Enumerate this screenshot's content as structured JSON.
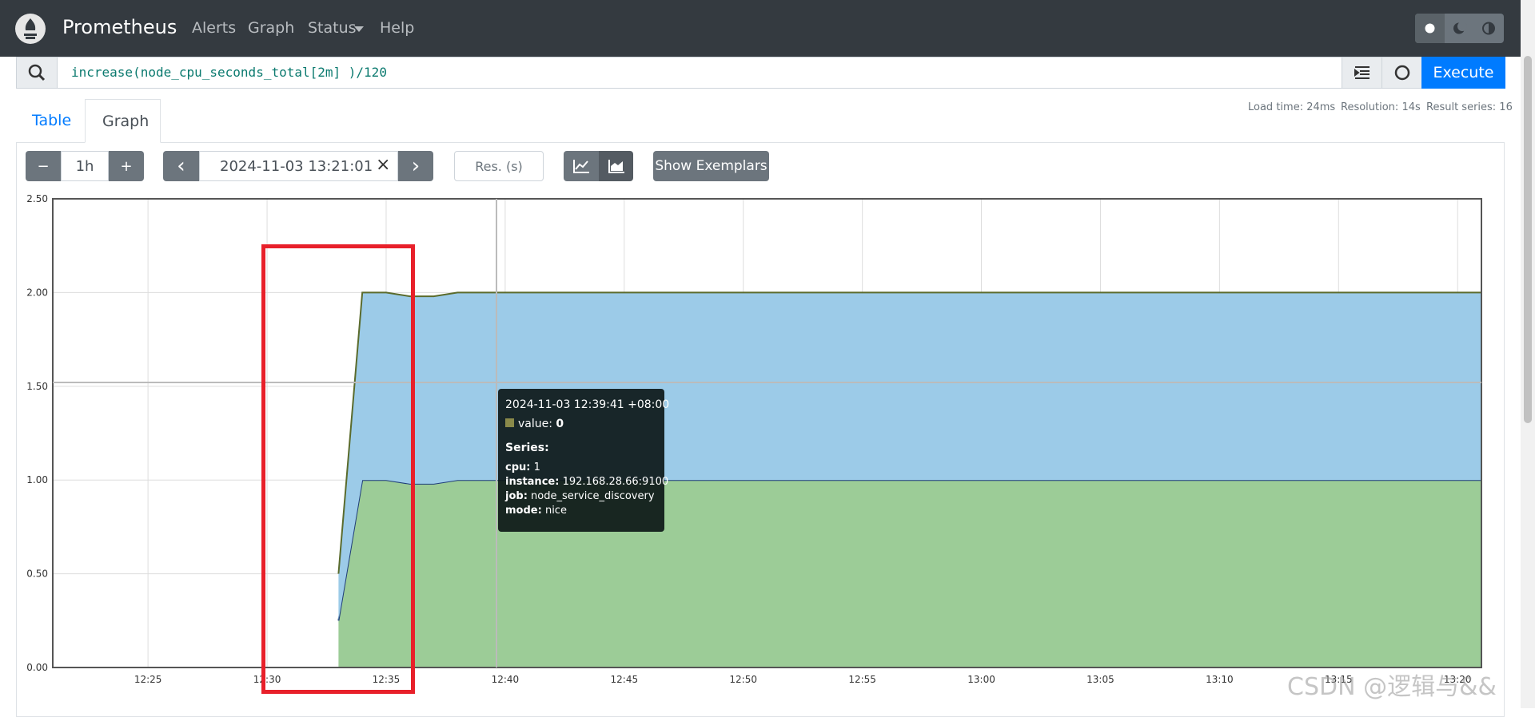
{
  "navbar": {
    "brand": "Prometheus",
    "links": [
      "Alerts",
      "Graph",
      "Status",
      "Help"
    ]
  },
  "query": {
    "expression": "increase(node_cpu_seconds_total[2m] )/120",
    "execute": "Execute"
  },
  "tabs": [
    "Table",
    "Graph"
  ],
  "stats": [
    "Load time: 24ms",
    "Resolution: 14s",
    "Result series: 16"
  ],
  "controls": {
    "minus": "−",
    "range": "1h",
    "plus": "+",
    "prev": "‹",
    "end_time": "2024-11-03 13:21:01",
    "clear": "×",
    "next": "›",
    "resolution": "Res. (s)",
    "exemplars": "Show Exemplars"
  },
  "chart_data": {
    "type": "area",
    "stacked": true,
    "x": [
      "12:33",
      "12:34",
      "12:35",
      "12:36",
      "12:37",
      "12:38",
      "12:40",
      "12:50",
      "13:00",
      "13:10",
      "13:21"
    ],
    "series": [
      {
        "color": "#9ccc97",
        "line_color": "#1f3c78",
        "values": [
          0.25,
          1,
          1,
          0.98,
          0.98,
          1,
          1,
          1,
          1,
          1,
          1
        ]
      },
      {
        "color": "#9ccbe8",
        "line_color": "#5a6b2c",
        "values": [
          0.25,
          1,
          1,
          1,
          1,
          1,
          1,
          1,
          1,
          1,
          1
        ]
      }
    ],
    "xlim": [
      "12:21",
      "13:21"
    ],
    "xticks": [
      "12:25",
      "12:30",
      "12:35",
      "12:40",
      "12:45",
      "12:50",
      "12:55",
      "13:00",
      "13:05",
      "13:10",
      "13:15",
      "13:20"
    ],
    "ylim": [
      0,
      2.5
    ],
    "yticks": [
      {
        "value": 0,
        "label": "0.00"
      },
      {
        "value": 0.5,
        "label": "0.50"
      },
      {
        "value": 1,
        "label": "1.00"
      },
      {
        "value": 1.5,
        "label": "1.50"
      },
      {
        "value": 2,
        "label": "2.00"
      },
      {
        "value": 2.5,
        "label": "2.50"
      }
    ],
    "grid": true
  },
  "tooltip": {
    "time": "2024-11-03 12:39:41 +08:00",
    "value_key": "value:",
    "value": "0",
    "heading": "Series:",
    "labels": [
      {
        "key": "cpu:",
        "value": "1"
      },
      {
        "key": "instance:",
        "value": "192.168.28.66:9100"
      },
      {
        "key": "job:",
        "value": "node_service_discovery"
      },
      {
        "key": "mode:",
        "value": "nice"
      }
    ]
  },
  "watermark": "CSDN @逻辑与&&"
}
